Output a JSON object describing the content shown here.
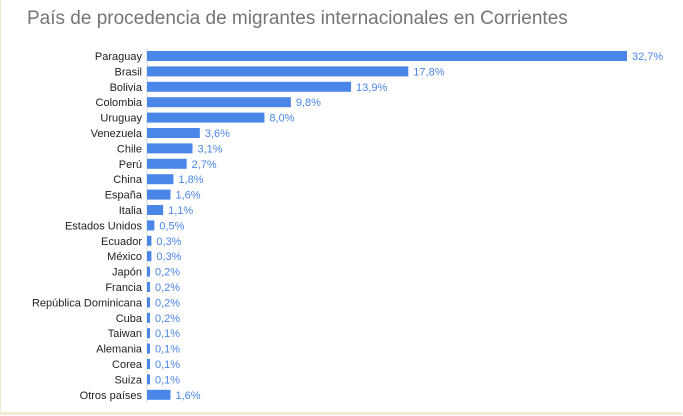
{
  "chart_data": {
    "type": "bar",
    "orientation": "horizontal",
    "title": "País de procedencia de migrantes internacionales en Corrientes",
    "categories": [
      "Paraguay",
      "Brasil",
      "Bolivia",
      "Colombia",
      "Uruguay",
      "Venezuela",
      "Chile",
      "Perú",
      "China",
      "España",
      "Italia",
      "Estados Unidos",
      "Ecuador",
      "México",
      "Japón",
      "Francia",
      "República Dominicana",
      "Cuba",
      "Taiwan",
      "Alemania",
      "Corea",
      "Suiza",
      "Otros países"
    ],
    "values": [
      32.7,
      17.8,
      13.9,
      9.8,
      8.0,
      3.6,
      3.1,
      2.7,
      1.8,
      1.6,
      1.1,
      0.5,
      0.3,
      0.3,
      0.2,
      0.2,
      0.2,
      0.2,
      0.1,
      0.1,
      0.1,
      0.1,
      1.6
    ],
    "value_labels": [
      "32,7%",
      "17,8%",
      "13,9%",
      "9,8%",
      "8,0%",
      "3,6%",
      "3,1%",
      "2,7%",
      "1,8%",
      "1,6%",
      "1,1%",
      "0,5%",
      "0,3%",
      "0,3%",
      "0,2%",
      "0,2%",
      "0,2%",
      "0,2%",
      "0,1%",
      "0,1%",
      "0,1%",
      "0,1%",
      "1,6%"
    ],
    "xlim": [
      0,
      32.7
    ],
    "grid": false,
    "legend": "none",
    "bar_color": "#4a86e8",
    "value_label_color": "#4a86e8"
  }
}
